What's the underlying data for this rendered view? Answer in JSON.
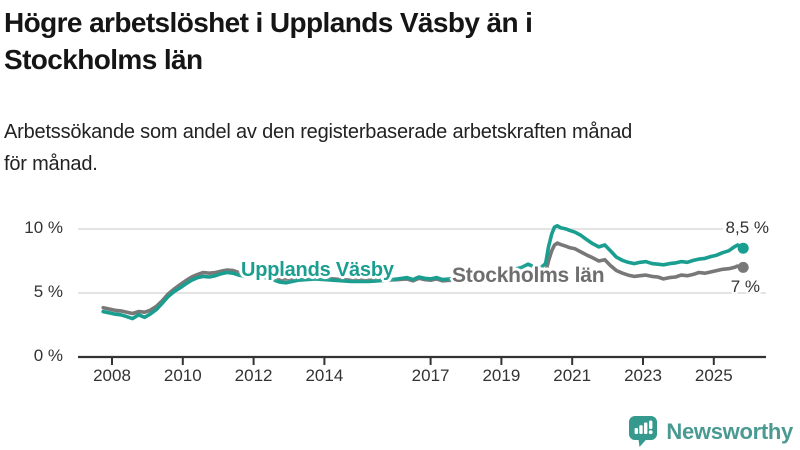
{
  "title": {
    "text": "Högre arbetslöshet i Upplands Väsby än i Stockholms län",
    "lines": [
      "Högre arbetslöshet i Upplands Väsby än i",
      "Stockholms län"
    ]
  },
  "subtitle": {
    "text": "Arbetssökande som andel av den registerbaserade arbetskraften månad för månad.",
    "lines": [
      "Arbetssökande som andel av den registerbaserade arbetskraften månad",
      "för månad."
    ]
  },
  "colors": {
    "teal": "#1A9E90",
    "gray": "#787878",
    "grid": "#dcdcdc",
    "axis": "#333333",
    "tick_text": "#333333",
    "title_text": "#151515",
    "logo_icon": "#35998D",
    "logo_text": "#4A9A92",
    "background": "#ffffff"
  },
  "chart_data": {
    "type": "line",
    "title": "Högre arbetslöshet i Upplands Väsby än i Stockholms län",
    "subtitle": "Arbetssökande som andel av den registerbaserade arbetskraften månad för månad.",
    "xlabel": "",
    "ylabel": "",
    "x_unit": "year",
    "y_unit": "%",
    "xlim": [
      2007.0,
      2026.5
    ],
    "ylim": [
      0,
      11
    ],
    "grid": "horizontal",
    "legend_position": "inline-labels",
    "y_ticks": [
      {
        "value": 10,
        "label": "10 %"
      },
      {
        "value": 5,
        "label": "5 %"
      },
      {
        "value": 0,
        "label": "0 %"
      }
    ],
    "x_ticks": [
      {
        "value": 2008,
        "label": "2008"
      },
      {
        "value": 2010,
        "label": "2010"
      },
      {
        "value": 2012,
        "label": "2012"
      },
      {
        "value": 2014,
        "label": "2014"
      },
      {
        "value": 2017,
        "label": "2017"
      },
      {
        "value": 2019,
        "label": "2019"
      },
      {
        "value": 2021,
        "label": "2021"
      },
      {
        "value": 2023,
        "label": "2023"
      },
      {
        "value": 2025,
        "label": "2025"
      }
    ],
    "series": [
      {
        "name": "Upplands Väsby",
        "color": "#1A9E90",
        "end_label": "8,5 %",
        "end_value": 8.5,
        "points": [
          [
            2007.75,
            3.55
          ],
          [
            2007.92,
            3.45
          ],
          [
            2008.08,
            3.35
          ],
          [
            2008.25,
            3.3
          ],
          [
            2008.42,
            3.15
          ],
          [
            2008.58,
            3.0
          ],
          [
            2008.75,
            3.3
          ],
          [
            2008.92,
            3.1
          ],
          [
            2009.08,
            3.35
          ],
          [
            2009.25,
            3.7
          ],
          [
            2009.42,
            4.2
          ],
          [
            2009.58,
            4.7
          ],
          [
            2009.75,
            5.1
          ],
          [
            2009.92,
            5.4
          ],
          [
            2010.08,
            5.7
          ],
          [
            2010.25,
            6.0
          ],
          [
            2010.42,
            6.2
          ],
          [
            2010.58,
            6.3
          ],
          [
            2010.75,
            6.25
          ],
          [
            2010.92,
            6.35
          ],
          [
            2011.08,
            6.5
          ],
          [
            2011.25,
            6.6
          ],
          [
            2011.42,
            6.55
          ],
          [
            2011.58,
            6.4
          ],
          [
            2011.75,
            6.3
          ],
          [
            2011.92,
            6.4
          ],
          [
            2012.08,
            6.5
          ],
          [
            2012.25,
            6.3
          ],
          [
            2012.42,
            6.1
          ],
          [
            2012.58,
            6.0
          ],
          [
            2012.75,
            5.85
          ],
          [
            2012.92,
            5.8
          ],
          [
            2013.25,
            6.0
          ],
          [
            2013.75,
            6.1
          ],
          [
            2014.25,
            6.0
          ],
          [
            2014.75,
            5.9
          ],
          [
            2015.25,
            5.9
          ],
          [
            2015.75,
            6.0
          ],
          [
            2016.08,
            6.1
          ],
          [
            2016.33,
            6.2
          ],
          [
            2016.5,
            6.05
          ],
          [
            2016.67,
            6.25
          ],
          [
            2016.83,
            6.15
          ],
          [
            2017.0,
            6.1
          ],
          [
            2017.17,
            6.2
          ],
          [
            2017.33,
            6.05
          ],
          [
            2017.58,
            6.1
          ],
          [
            2018.0,
            6.2
          ],
          [
            2018.5,
            6.3
          ],
          [
            2019.0,
            6.5
          ],
          [
            2019.25,
            6.7
          ],
          [
            2019.42,
            6.9
          ],
          [
            2019.58,
            7.0
          ],
          [
            2019.75,
            7.25
          ],
          [
            2019.92,
            7.05
          ],
          [
            2020.08,
            6.9
          ],
          [
            2020.25,
            7.3
          ],
          [
            2020.33,
            8.6
          ],
          [
            2020.42,
            9.6
          ],
          [
            2020.5,
            10.15
          ],
          [
            2020.58,
            10.25
          ],
          [
            2020.67,
            10.1
          ],
          [
            2020.83,
            10.0
          ],
          [
            2020.92,
            9.9
          ],
          [
            2021.08,
            9.75
          ],
          [
            2021.25,
            9.5
          ],
          [
            2021.42,
            9.15
          ],
          [
            2021.58,
            8.85
          ],
          [
            2021.75,
            8.6
          ],
          [
            2021.92,
            8.75
          ],
          [
            2022.08,
            8.3
          ],
          [
            2022.25,
            7.8
          ],
          [
            2022.42,
            7.55
          ],
          [
            2022.58,
            7.4
          ],
          [
            2022.75,
            7.3
          ],
          [
            2022.92,
            7.4
          ],
          [
            2023.08,
            7.45
          ],
          [
            2023.25,
            7.3
          ],
          [
            2023.42,
            7.25
          ],
          [
            2023.58,
            7.2
          ],
          [
            2023.75,
            7.3
          ],
          [
            2023.92,
            7.35
          ],
          [
            2024.08,
            7.45
          ],
          [
            2024.25,
            7.4
          ],
          [
            2024.42,
            7.55
          ],
          [
            2024.58,
            7.65
          ],
          [
            2024.75,
            7.7
          ],
          [
            2024.92,
            7.85
          ],
          [
            2025.08,
            7.95
          ],
          [
            2025.25,
            8.15
          ],
          [
            2025.42,
            8.3
          ],
          [
            2025.58,
            8.6
          ],
          [
            2025.67,
            8.75
          ],
          [
            2025.83,
            8.5
          ]
        ]
      },
      {
        "name": "Stockholms län",
        "color": "#787878",
        "end_label": "7 %",
        "end_value": 7.0,
        "points": [
          [
            2007.75,
            3.85
          ],
          [
            2007.92,
            3.75
          ],
          [
            2008.08,
            3.65
          ],
          [
            2008.25,
            3.6
          ],
          [
            2008.42,
            3.5
          ],
          [
            2008.58,
            3.4
          ],
          [
            2008.75,
            3.55
          ],
          [
            2008.92,
            3.5
          ],
          [
            2009.08,
            3.65
          ],
          [
            2009.25,
            3.95
          ],
          [
            2009.42,
            4.4
          ],
          [
            2009.58,
            4.9
          ],
          [
            2009.75,
            5.3
          ],
          [
            2009.92,
            5.65
          ],
          [
            2010.08,
            5.95
          ],
          [
            2010.25,
            6.25
          ],
          [
            2010.42,
            6.45
          ],
          [
            2010.58,
            6.6
          ],
          [
            2010.75,
            6.55
          ],
          [
            2010.92,
            6.6
          ],
          [
            2011.08,
            6.7
          ],
          [
            2011.25,
            6.8
          ],
          [
            2011.42,
            6.75
          ],
          [
            2011.58,
            6.6
          ],
          [
            2011.75,
            6.5
          ],
          [
            2011.92,
            6.6
          ],
          [
            2012.08,
            6.65
          ],
          [
            2012.25,
            6.5
          ],
          [
            2012.42,
            6.3
          ],
          [
            2012.58,
            6.2
          ],
          [
            2012.75,
            6.1
          ],
          [
            2012.92,
            6.1
          ],
          [
            2013.25,
            6.2
          ],
          [
            2013.75,
            6.2
          ],
          [
            2014.25,
            6.1
          ],
          [
            2014.75,
            6.0
          ],
          [
            2015.25,
            6.0
          ],
          [
            2015.75,
            6.0
          ],
          [
            2016.08,
            6.05
          ],
          [
            2016.33,
            6.1
          ],
          [
            2016.5,
            5.95
          ],
          [
            2016.67,
            6.15
          ],
          [
            2016.83,
            6.05
          ],
          [
            2017.0,
            6.0
          ],
          [
            2017.17,
            6.1
          ],
          [
            2017.33,
            5.95
          ],
          [
            2017.58,
            6.0
          ],
          [
            2018.0,
            5.9
          ],
          [
            2018.5,
            5.95
          ],
          [
            2019.0,
            6.0
          ],
          [
            2019.25,
            6.1
          ],
          [
            2019.42,
            6.15
          ],
          [
            2019.58,
            6.25
          ],
          [
            2019.75,
            6.35
          ],
          [
            2019.92,
            6.3
          ],
          [
            2020.08,
            6.25
          ],
          [
            2020.25,
            6.6
          ],
          [
            2020.33,
            7.5
          ],
          [
            2020.42,
            8.3
          ],
          [
            2020.5,
            8.75
          ],
          [
            2020.58,
            8.9
          ],
          [
            2020.67,
            8.8
          ],
          [
            2020.83,
            8.65
          ],
          [
            2020.92,
            8.55
          ],
          [
            2021.08,
            8.45
          ],
          [
            2021.25,
            8.2
          ],
          [
            2021.42,
            7.95
          ],
          [
            2021.58,
            7.75
          ],
          [
            2021.75,
            7.5
          ],
          [
            2021.92,
            7.6
          ],
          [
            2022.08,
            7.15
          ],
          [
            2022.25,
            6.75
          ],
          [
            2022.42,
            6.55
          ],
          [
            2022.58,
            6.4
          ],
          [
            2022.75,
            6.3
          ],
          [
            2022.92,
            6.35
          ],
          [
            2023.08,
            6.4
          ],
          [
            2023.25,
            6.3
          ],
          [
            2023.42,
            6.25
          ],
          [
            2023.58,
            6.1
          ],
          [
            2023.75,
            6.2
          ],
          [
            2023.92,
            6.25
          ],
          [
            2024.08,
            6.4
          ],
          [
            2024.25,
            6.35
          ],
          [
            2024.42,
            6.45
          ],
          [
            2024.58,
            6.6
          ],
          [
            2024.75,
            6.55
          ],
          [
            2024.92,
            6.65
          ],
          [
            2025.08,
            6.75
          ],
          [
            2025.25,
            6.85
          ],
          [
            2025.42,
            6.9
          ],
          [
            2025.58,
            7.0
          ],
          [
            2025.67,
            7.1
          ],
          [
            2025.83,
            7.0
          ]
        ]
      }
    ]
  },
  "logo": {
    "text": "Newsworthy"
  }
}
